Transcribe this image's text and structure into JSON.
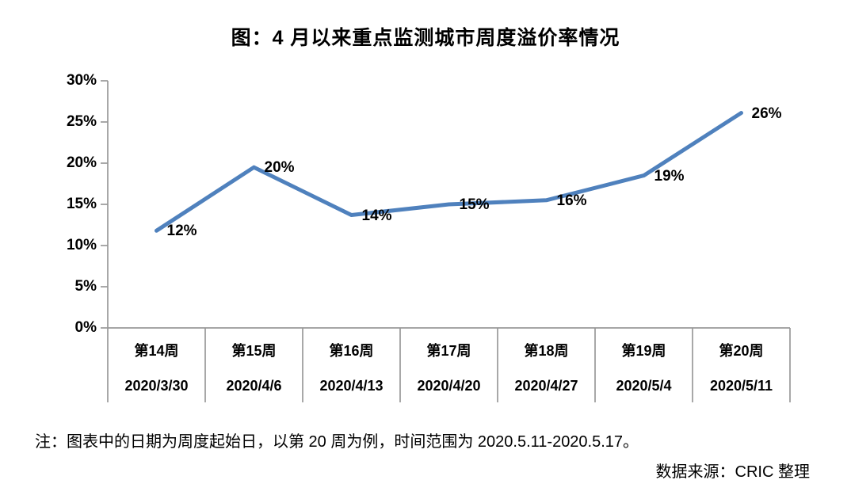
{
  "title": "图：4 月以来重点监测城市周度溢价率情况",
  "note": "注：图表中的日期为周度起始日，以第 20 周为例，时间范围为 2020.5.11-2020.5.17。",
  "source": "数据来源：CRIC 整理",
  "colors": {
    "line": "#4F81BD",
    "axis": "#999999",
    "text": "#000000",
    "background": "#FFFFFF"
  },
  "chart_data": {
    "type": "line",
    "title": "图：4 月以来重点监测城市周度溢价率情况",
    "categories": [
      {
        "week": "第14周",
        "date": "2020/3/30"
      },
      {
        "week": "第15周",
        "date": "2020/4/6"
      },
      {
        "week": "第16周",
        "date": "2020/4/13"
      },
      {
        "week": "第17周",
        "date": "2020/4/20"
      },
      {
        "week": "第18周",
        "date": "2020/4/27"
      },
      {
        "week": "第19周",
        "date": "2020/5/4"
      },
      {
        "week": "第20周",
        "date": "2020/5/11"
      }
    ],
    "values": [
      12,
      20,
      14,
      15,
      16,
      19,
      26
    ],
    "values_precise": [
      11.8,
      19.5,
      13.7,
      15.0,
      15.5,
      18.5,
      26.1
    ],
    "labels": [
      "12%",
      "20%",
      "14%",
      "15%",
      "16%",
      "19%",
      "26%"
    ],
    "yticks": [
      "0%",
      "5%",
      "10%",
      "15%",
      "20%",
      "25%",
      "30%"
    ],
    "ytick_step": 5,
    "ylim": [
      0,
      30
    ],
    "ylabel": "",
    "xlabel": "",
    "grid": false,
    "legend": false
  }
}
